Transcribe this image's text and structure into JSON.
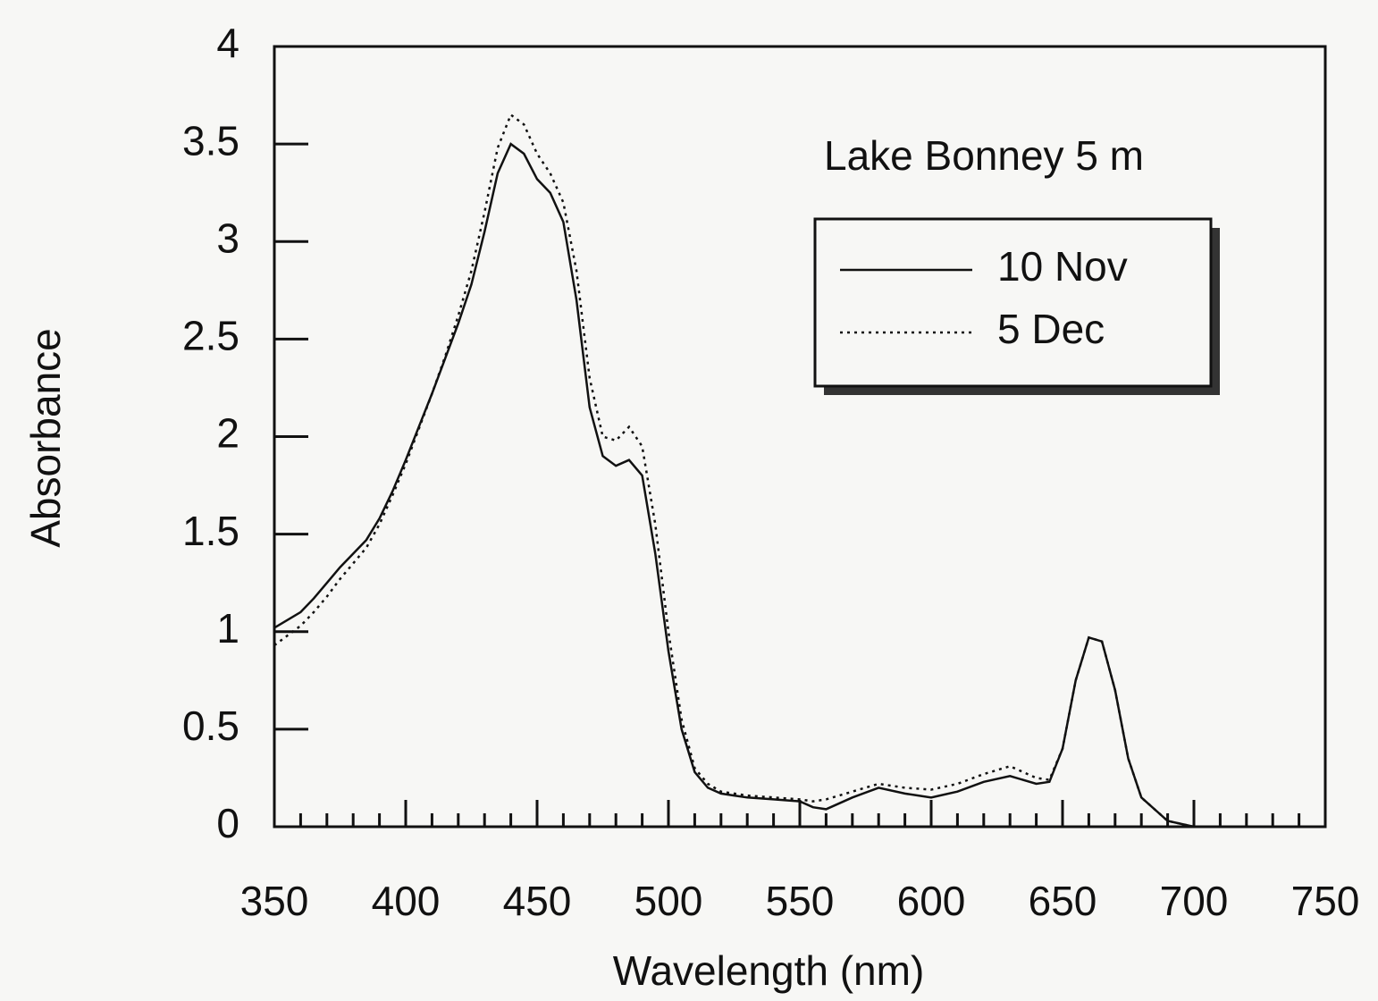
{
  "chart_data": {
    "type": "line",
    "annotation": "Lake Bonney 5 m",
    "x_label": "Wavelength (nm)",
    "y_label": "Absorbance",
    "x": [
      350,
      355,
      360,
      365,
      370,
      375,
      380,
      385,
      390,
      395,
      400,
      405,
      410,
      415,
      420,
      425,
      430,
      435,
      440,
      445,
      450,
      455,
      460,
      465,
      470,
      475,
      480,
      485,
      490,
      495,
      500,
      505,
      510,
      515,
      520,
      525,
      530,
      540,
      550,
      555,
      560,
      570,
      580,
      590,
      600,
      610,
      620,
      630,
      640,
      645,
      650,
      655,
      660,
      665,
      670,
      675,
      680,
      690,
      700
    ],
    "series": [
      {
        "name": "10 Nov",
        "color": "#111111",
        "dash": "solid",
        "values": [
          1.02,
          1.06,
          1.1,
          1.17,
          1.25,
          1.33,
          1.4,
          1.47,
          1.58,
          1.72,
          1.88,
          2.05,
          2.22,
          2.4,
          2.58,
          2.78,
          3.05,
          3.35,
          3.5,
          3.45,
          3.32,
          3.25,
          3.1,
          2.7,
          2.15,
          1.9,
          1.85,
          1.88,
          1.8,
          1.4,
          0.9,
          0.5,
          0.28,
          0.2,
          0.17,
          0.16,
          0.15,
          0.14,
          0.13,
          0.1,
          0.09,
          0.15,
          0.2,
          0.17,
          0.15,
          0.18,
          0.23,
          0.26,
          0.22,
          0.23,
          0.4,
          0.75,
          0.97,
          0.95,
          0.7,
          0.35,
          0.15,
          0.03,
          0
        ]
      },
      {
        "name": "5 Dec",
        "color": "#111111",
        "dash": "dotted",
        "values": [
          0.93,
          0.98,
          1.03,
          1.1,
          1.18,
          1.27,
          1.35,
          1.43,
          1.55,
          1.7,
          1.86,
          2.04,
          2.22,
          2.41,
          2.62,
          2.85,
          3.15,
          3.48,
          3.65,
          3.6,
          3.45,
          3.35,
          3.2,
          2.85,
          2.3,
          2,
          1.98,
          2.05,
          1.95,
          1.55,
          1,
          0.55,
          0.3,
          0.22,
          0.18,
          0.17,
          0.16,
          0.15,
          0.14,
          0.13,
          0.14,
          0.18,
          0.22,
          0.2,
          0.19,
          0.22,
          0.27,
          0.31,
          0.25,
          0.24,
          0.4,
          0.75,
          0.97,
          0.95,
          0.7,
          0.35,
          0.15,
          0.03,
          0
        ]
      }
    ],
    "xlim": [
      350,
      750
    ],
    "ylim": [
      0,
      4
    ],
    "xticks": [
      350,
      400,
      450,
      500,
      550,
      600,
      650,
      700,
      750
    ],
    "xminorticks": [
      360,
      370,
      380,
      390,
      410,
      420,
      430,
      440,
      460,
      470,
      480,
      490,
      510,
      520,
      530,
      540,
      560,
      570,
      580,
      590,
      610,
      620,
      630,
      640,
      660,
      670,
      680,
      690,
      710,
      720,
      730,
      740
    ],
    "yticks": [
      0,
      0.5,
      1,
      1.5,
      2,
      2.5,
      3,
      3.5,
      4
    ],
    "grid": false,
    "legend": "upper right"
  }
}
